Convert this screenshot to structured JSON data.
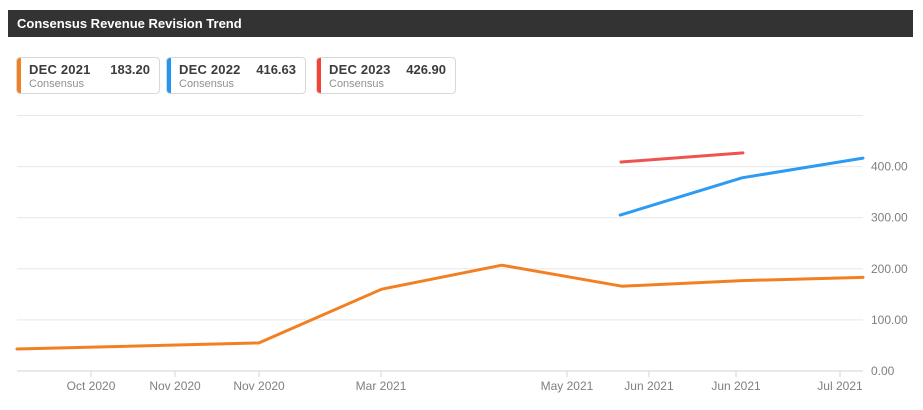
{
  "header": {
    "title": "Consensus Revenue Revision Trend"
  },
  "legend_cards": [
    {
      "label": "DEC 2021",
      "value": "183.20",
      "sublabel": "Consensus",
      "color": "#f28022"
    },
    {
      "label": "DEC 2022",
      "value": "416.63",
      "sublabel": "Consensus",
      "color": "#2196f3"
    },
    {
      "label": "DEC 2023",
      "value": "426.90",
      "sublabel": "Consensus",
      "color": "#f44336"
    }
  ],
  "chart_data": {
    "type": "line",
    "title": "Consensus Revenue Revision Trend",
    "xlabel": "",
    "ylabel": "",
    "ylim": [
      0,
      500
    ],
    "grid": true,
    "legend_position": "top",
    "x_ticks": [
      {
        "pos": 0.0875,
        "label": "Oct 2020"
      },
      {
        "pos": 0.1868,
        "label": "Nov 2020"
      },
      {
        "pos": 0.2861,
        "label": "Nov 2020"
      },
      {
        "pos": 0.4303,
        "label": "Mar 2021"
      },
      {
        "pos": 0.6501,
        "label": "May 2021"
      },
      {
        "pos": 0.747,
        "label": "Jun 2021"
      },
      {
        "pos": 0.8499,
        "label": "Jun 2021"
      },
      {
        "pos": 0.9728,
        "label": "Jul 2021"
      }
    ],
    "y_ticks": [
      {
        "value": 0,
        "label": "0.00"
      },
      {
        "value": 100,
        "label": "100.00"
      },
      {
        "value": 200,
        "label": "200.00"
      },
      {
        "value": 300,
        "label": "300.00"
      },
      {
        "value": 400,
        "label": "400.00"
      },
      {
        "value": 500,
        "label": ""
      }
    ],
    "series": [
      {
        "id": "dec-2021",
        "name": "DEC 2021 Consensus",
        "color": "#f28022",
        "points": [
          [
            0.0,
            43
          ],
          [
            0.286,
            55
          ],
          [
            0.431,
            160
          ],
          [
            0.573,
            207
          ],
          [
            0.715,
            166
          ],
          [
            0.857,
            177
          ],
          [
            1.0,
            183.2
          ]
        ]
      },
      {
        "id": "dec-2022",
        "name": "DEC 2022 Consensus",
        "color": "#2e9bf3",
        "points": [
          [
            0.713,
            305
          ],
          [
            0.857,
            378
          ],
          [
            1.0,
            416.63
          ]
        ]
      },
      {
        "id": "dec-2023",
        "name": "DEC 2023 Consensus",
        "color": "#ef5350",
        "points": [
          [
            0.714,
            409
          ],
          [
            0.858,
            426.9
          ]
        ]
      }
    ]
  }
}
